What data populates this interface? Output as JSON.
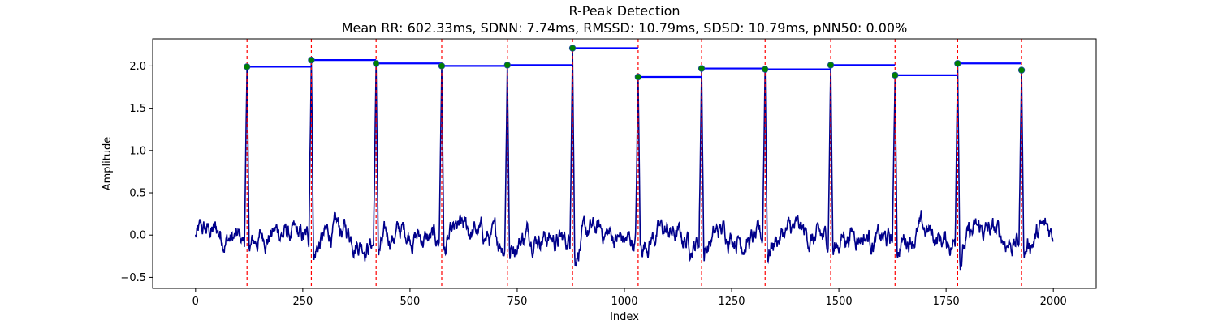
{
  "chart_data": {
    "type": "line",
    "title": "R-Peak Detection",
    "subtitle": "Mean RR: 602.33ms, SDNN: 7.74ms, RMSSD: 10.79ms, SDSD: 10.79ms, pNN50: 0.00%",
    "xlabel": "Index",
    "ylabel": "Amplitude",
    "xlim": [
      -100,
      2100
    ],
    "ylim": [
      -0.63,
      2.32
    ],
    "xticks": [
      0,
      250,
      500,
      750,
      1000,
      1250,
      1500,
      1750,
      2000
    ],
    "yticks": [
      -0.5,
      0.0,
      0.5,
      1.0,
      1.5,
      2.0
    ],
    "grid": false,
    "r_peaks": {
      "x": [
        120,
        270,
        421,
        574,
        727,
        879,
        1032,
        1180,
        1328,
        1481,
        1631,
        1777,
        1926
      ],
      "y": [
        1.99,
        2.07,
        2.03,
        2.0,
        2.01,
        2.21,
        1.87,
        1.97,
        1.96,
        2.01,
        1.89,
        2.03,
        1.95
      ]
    },
    "colors": {
      "signal": "#00008b",
      "rr_segments": "#0000ff",
      "peak_lines": "#ff0000",
      "peak_markers": "#008000"
    }
  }
}
